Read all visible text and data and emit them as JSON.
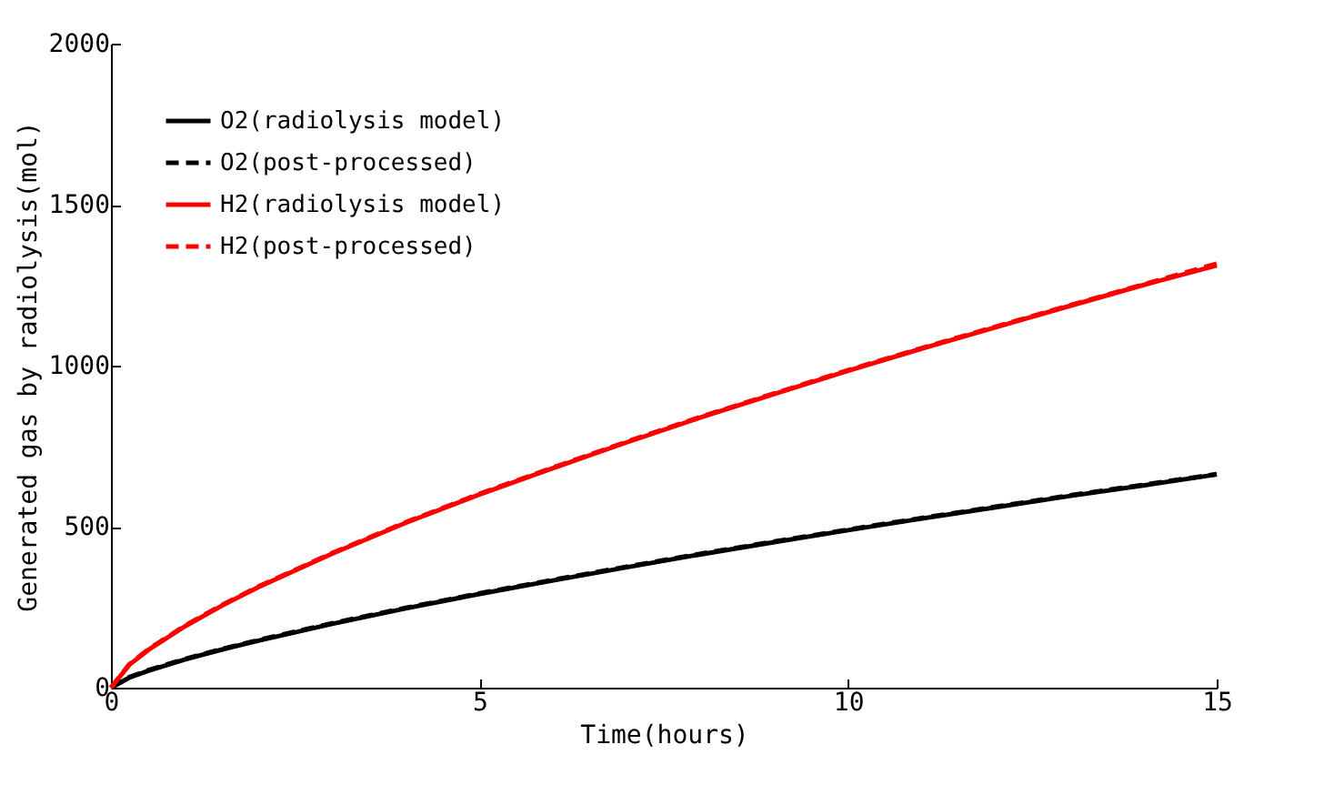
{
  "chart_data": {
    "type": "line",
    "xlabel": "Time(hours)",
    "ylabel": "Generated gas by radiolysis(mol)",
    "x": [
      0,
      0.25,
      0.5,
      1,
      1.5,
      2,
      3,
      4,
      5,
      6,
      7,
      8,
      9,
      10,
      11,
      12,
      13,
      14,
      15
    ],
    "series": [
      {
        "name": "O2(radiolysis model)",
        "color": "#000000",
        "line_style": "solid",
        "values": [
          0,
          31,
          52,
          87,
          118,
          146,
          198,
          246,
          291,
          333,
          374,
          414,
          452,
          489,
          525,
          560,
          595,
          628,
          662
        ]
      },
      {
        "name": "O2(post-processed)",
        "color": "#000000",
        "line_style": "dashed",
        "values": [
          0,
          33,
          54,
          89,
          120,
          148,
          200,
          248,
          293,
          335,
          376,
          416,
          454,
          491,
          527,
          562,
          597,
          630,
          663
        ]
      },
      {
        "name": "H2(radiolysis model)",
        "color": "#ff0000",
        "line_style": "solid",
        "values": [
          0,
          71,
          116,
          190,
          254,
          312,
          416,
          512,
          600,
          682,
          762,
          839,
          912,
          984,
          1053,
          1119,
          1185,
          1250,
          1311
        ]
      },
      {
        "name": "H2(post-processed)",
        "color": "#ff0000",
        "line_style": "dashed",
        "values": [
          0,
          73,
          118,
          192,
          256,
          314,
          418,
          514,
          602,
          684,
          764,
          841,
          914,
          986,
          1055,
          1121,
          1187,
          1252,
          1317
        ]
      }
    ],
    "xlim": [
      0,
      15
    ],
    "xticks": [
      0,
      5,
      10,
      15
    ],
    "ylim": [
      0,
      2000
    ],
    "yticks": [
      0,
      500,
      1000,
      1500,
      2000
    ],
    "grid": false,
    "legend": "top left",
    "marker": "none"
  }
}
